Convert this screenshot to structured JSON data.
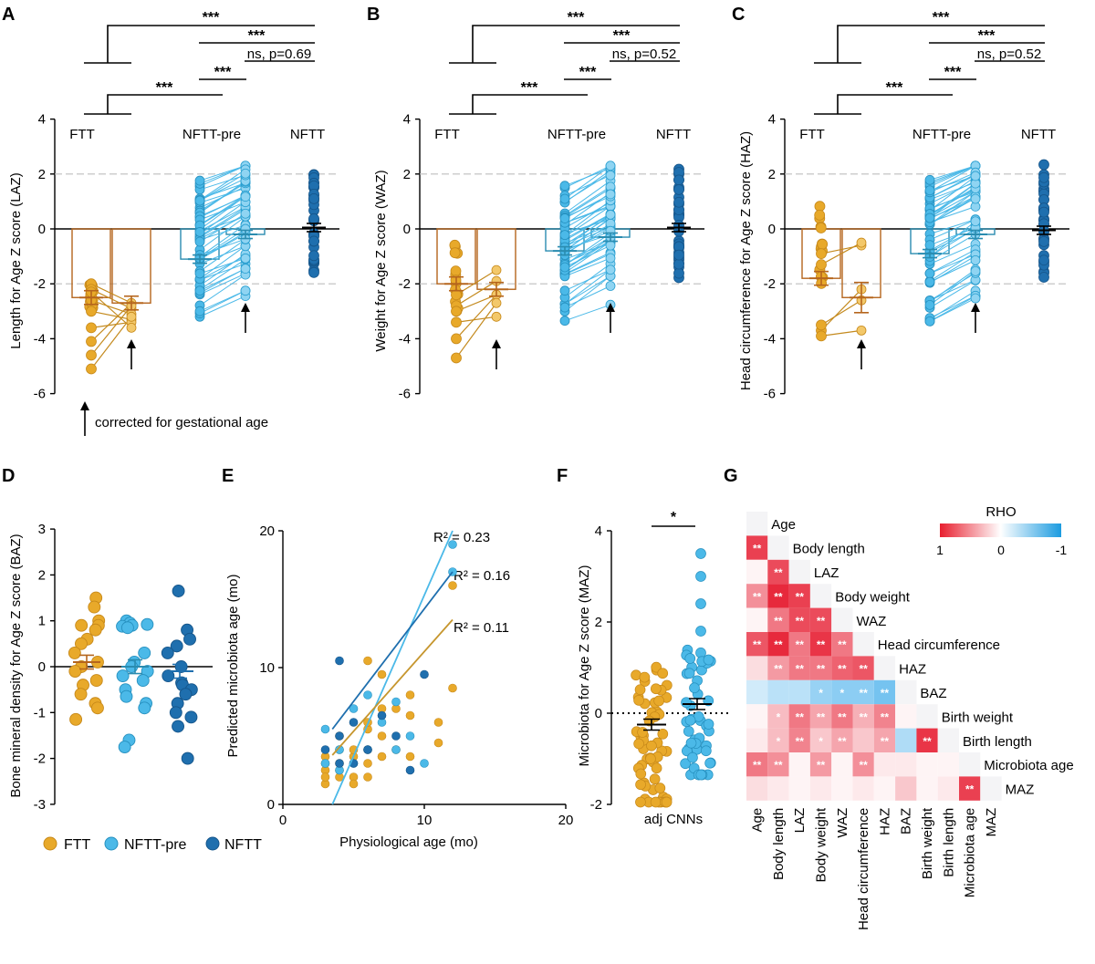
{
  "colors": {
    "ftt": "#E8A92A",
    "ftt_line": "#C48A1E",
    "ftt_bar": "#B5651D",
    "nftt_pre": "#4BB9E8",
    "nftt_pre_bar": "#2A8CB0",
    "nftt": "#1F6FAE",
    "dash": "#bdbdbd"
  },
  "panels": {
    "A": {
      "letter": "A",
      "ylabel": "Length for Age Z score (LAZ)",
      "groups": [
        "FTT",
        "NFTT-pre",
        "NFTT"
      ],
      "ylim": [
        -6,
        4
      ],
      "yticks": [
        "4",
        "2",
        "0",
        "-2",
        "-4",
        "-6"
      ],
      "means": [
        -2.5,
        -2.7,
        -1.1,
        -0.2,
        0.05
      ],
      "sig": [
        "***",
        "***",
        "ns, p=0.69",
        "***",
        "***"
      ],
      "note": "corrected for gestational age"
    },
    "B": {
      "letter": "B",
      "ylabel": "Weight for Age Z score (WAZ)",
      "groups": [
        "FTT",
        "NFTT-pre",
        "NFTT"
      ],
      "ylim": [
        -6,
        4
      ],
      "yticks": [
        "4",
        "2",
        "0",
        "-2",
        "-4",
        "-6"
      ],
      "means": [
        -2.0,
        -2.2,
        -0.8,
        -0.3,
        0.05
      ],
      "sig": [
        "***",
        "***",
        "ns, p=0.52",
        "***",
        "***"
      ]
    },
    "C": {
      "letter": "C",
      "ylabel": "Head circumference for Age Z score (HAZ)",
      "groups": [
        "FTT",
        "NFTT-pre",
        "NFTT"
      ],
      "ylim": [
        -6,
        4
      ],
      "yticks": [
        "4",
        "2",
        "0",
        "-2",
        "-4",
        "-6"
      ],
      "means": [
        -1.8,
        -2.5,
        -0.9,
        -0.2,
        -0.05
      ],
      "sig": [
        "***",
        "***",
        "ns, p=0.52",
        "***",
        "***"
      ]
    },
    "D": {
      "letter": "D",
      "ylabel": "Bone mineral density for Age Z score (BAZ)",
      "ylim": [
        -3,
        3
      ],
      "yticks": [
        "3",
        "2",
        "1",
        "0",
        "-1",
        "-2",
        "-3"
      ],
      "means": [
        0.1,
        0.0,
        -0.1
      ]
    },
    "E": {
      "letter": "E",
      "xlabel": "Physiological age (mo)",
      "ylabel": "Predicted microbiota age (mo)",
      "xticks": [
        "0",
        "10",
        "20"
      ],
      "yticks": [
        "0",
        "10",
        "20"
      ],
      "r2": [
        "R² = 0.23",
        "R² = 0.16",
        "R² = 0.11"
      ]
    },
    "F": {
      "letter": "F",
      "ylabel": "Microbiota for Age Z score (MAZ)",
      "xlabel": "adj CNNs",
      "yticks": [
        "4",
        "2",
        "0",
        "-2"
      ],
      "sig": "*"
    },
    "G": {
      "letter": "G",
      "legend_title": "RHO",
      "legend_ticks": [
        "1",
        "0",
        "-1"
      ]
    }
  },
  "legend": {
    "ftt": "FTT",
    "nftt_pre": "NFTT-pre",
    "nftt": "NFTT"
  },
  "chart_data": [
    {
      "type": "bar",
      "panel": "A",
      "title": "",
      "ylabel": "Length for Age Z score (LAZ)",
      "categories": [
        "FTT",
        "FTT corrected",
        "NFTT-pre",
        "NFTT-pre corrected",
        "NFTT"
      ],
      "values": [
        -2.5,
        -2.7,
        -1.1,
        -0.2,
        0.05
      ],
      "ylim": [
        -6,
        4
      ]
    },
    {
      "type": "bar",
      "panel": "B",
      "title": "",
      "ylabel": "Weight for Age Z score (WAZ)",
      "categories": [
        "FTT",
        "FTT corrected",
        "NFTT-pre",
        "NFTT-pre corrected",
        "NFTT"
      ],
      "values": [
        -2.0,
        -2.2,
        -0.8,
        -0.3,
        0.05
      ],
      "ylim": [
        -6,
        4
      ]
    },
    {
      "type": "bar",
      "panel": "C",
      "title": "",
      "ylabel": "Head circumference for Age Z score (HAZ)",
      "categories": [
        "FTT",
        "FTT corrected",
        "NFTT-pre",
        "NFTT-pre corrected",
        "NFTT"
      ],
      "values": [
        -1.8,
        -2.5,
        -0.9,
        -0.2,
        -0.05
      ],
      "ylim": [
        -6,
        4
      ]
    },
    {
      "type": "scatter",
      "panel": "D",
      "ylabel": "Bone mineral density for Age Z score (BAZ)",
      "categories": [
        "FTT",
        "NFTT-pre",
        "NFTT"
      ],
      "means": [
        0.1,
        0.0,
        -0.1
      ],
      "ylim": [
        -3,
        3
      ],
      "series": [
        {
          "name": "FTT",
          "values": [
            1.5,
            1.3,
            1.0,
            0.9,
            0.9,
            0.8,
            0.6,
            0.5,
            0.3,
            0.1,
            0.0,
            -0.1,
            -0.3,
            -0.4,
            -0.6,
            -0.8,
            -0.9,
            -1.15
          ]
        },
        {
          "name": "NFTT-pre",
          "values": [
            1.0,
            0.95,
            0.92,
            0.9,
            0.88,
            0.85,
            0.3,
            0.1,
            0.0,
            -0.1,
            -0.2,
            -0.3,
            -0.5,
            -0.65,
            -0.8,
            -0.9,
            -1.6,
            -1.75
          ]
        },
        {
          "name": "NFTT",
          "values": [
            1.65,
            0.8,
            0.6,
            0.45,
            0.3,
            0.0,
            -0.2,
            -0.35,
            -0.4,
            -0.5,
            -0.6,
            -0.8,
            -1.0,
            -1.1,
            -1.3,
            -2.0
          ]
        }
      ]
    },
    {
      "type": "scatter",
      "panel": "E",
      "xlabel": "Physiological age (mo)",
      "ylabel": "Predicted microbiota age (mo)",
      "xlim": [
        0,
        20
      ],
      "ylim": [
        0,
        20
      ],
      "series": [
        {
          "name": "FTT",
          "x": [
            3,
            3,
            3,
            3,
            3,
            4,
            4,
            4,
            4,
            4,
            5,
            5,
            5,
            5,
            6,
            6,
            6,
            6,
            6,
            6,
            7,
            7,
            7,
            7,
            8,
            8,
            9,
            9,
            9,
            11,
            11,
            12,
            12
          ],
          "y": [
            2.5,
            3,
            3.5,
            1.5,
            2,
            3,
            2,
            4,
            5,
            2.5,
            3.5,
            4,
            2,
            1.5,
            3,
            4,
            5.5,
            2,
            6,
            10.5,
            3.5,
            5,
            7,
            9.5,
            4,
            7,
            3.5,
            6.5,
            8,
            4.5,
            6,
            8.5,
            16
          ]
        },
        {
          "name": "NFTT-pre",
          "x": [
            3,
            3,
            4,
            4,
            5,
            5,
            6,
            6,
            7,
            8,
            8,
            9,
            10,
            12,
            12
          ],
          "y": [
            3,
            5.5,
            2.5,
            4,
            3,
            7,
            4,
            8,
            6,
            4,
            7.5,
            5,
            3,
            17,
            19
          ]
        },
        {
          "name": "NFTT",
          "x": [
            3,
            4,
            4,
            4,
            5,
            5,
            6,
            7,
            8,
            9,
            10
          ],
          "y": [
            4,
            10.5,
            5,
            3,
            6,
            3,
            4,
            6.5,
            5,
            2.5,
            9.5
          ]
        }
      ],
      "fits": [
        {
          "name": "NFTT-pre",
          "r2": 0.23,
          "x0": 3.5,
          "y0": 0,
          "x1": 12,
          "y1": 20
        },
        {
          "name": "NFTT",
          "r2": 0.16,
          "x0": 3.5,
          "y0": 5.5,
          "x1": 12,
          "y1": 17
        },
        {
          "name": "FTT",
          "r2": 0.11,
          "x0": 3.5,
          "y0": 3.6,
          "x1": 12,
          "y1": 13.5
        }
      ]
    },
    {
      "type": "scatter",
      "panel": "F",
      "ylabel": "Microbiota for Age Z score (MAZ)",
      "categories": [
        "adj CNNs FTT",
        "adj CNNs NFTT"
      ],
      "means": [
        -0.25,
        0.2
      ],
      "ylim": [
        -2,
        4
      ]
    },
    {
      "type": "heatmap",
      "panel": "G",
      "legend_title": "RHO",
      "labels": [
        "Age",
        "Body length",
        "LAZ",
        "Body weight",
        "WAZ",
        "Head circumference",
        "HAZ",
        "BAZ",
        "Birth weight",
        "Birth length",
        "Microbiota age",
        "MAZ"
      ],
      "rho": [
        [
          0.0
        ],
        [
          0.85,
          0.0
        ],
        [
          0.05,
          0.8,
          0.0
        ],
        [
          0.5,
          0.95,
          0.85,
          0.0
        ],
        [
          0.05,
          0.6,
          0.8,
          0.8,
          0.0
        ],
        [
          0.75,
          0.95,
          0.6,
          0.9,
          0.6,
          0.0
        ],
        [
          0.15,
          0.45,
          0.6,
          0.6,
          0.7,
          0.75,
          0.0
        ],
        [
          -0.2,
          -0.3,
          -0.3,
          -0.45,
          -0.5,
          -0.5,
          -0.6,
          0.0
        ],
        [
          0.05,
          0.3,
          0.6,
          0.4,
          0.6,
          0.35,
          0.55,
          0.05,
          0.0
        ],
        [
          0.1,
          0.3,
          0.55,
          0.25,
          0.4,
          0.25,
          0.4,
          -0.35,
          0.9,
          0.0
        ],
        [
          0.6,
          0.5,
          0.05,
          0.45,
          0.05,
          0.5,
          0.1,
          0.1,
          0.05,
          0.05,
          0.0
        ],
        [
          0.15,
          0.1,
          0.05,
          0.1,
          0.05,
          0.1,
          0.05,
          0.25,
          0.05,
          0.1,
          0.85,
          0.0
        ]
      ],
      "stars": [
        [
          ""
        ],
        [
          "**",
          ""
        ],
        [
          "",
          "**",
          ""
        ],
        [
          "**",
          "**",
          "**",
          ""
        ],
        [
          "",
          "**",
          "**",
          "**",
          ""
        ],
        [
          "**",
          "**",
          "**",
          "**",
          "**",
          ""
        ],
        [
          "",
          "**",
          "**",
          "**",
          "**",
          "**",
          ""
        ],
        [
          "",
          "",
          "",
          "*",
          "*",
          "**",
          "**",
          ""
        ],
        [
          "",
          "*",
          "**",
          "**",
          "**",
          "**",
          "**",
          "",
          ""
        ],
        [
          "",
          "*",
          "**",
          "*",
          "**",
          "",
          "**",
          "",
          "**",
          ""
        ],
        [
          "**",
          "**",
          "",
          "**",
          "",
          "**",
          "",
          "",
          "",
          "",
          ""
        ],
        [
          "",
          "",
          "",
          "",
          "",
          "",
          "",
          "",
          "",
          "",
          "**",
          ""
        ]
      ]
    }
  ]
}
